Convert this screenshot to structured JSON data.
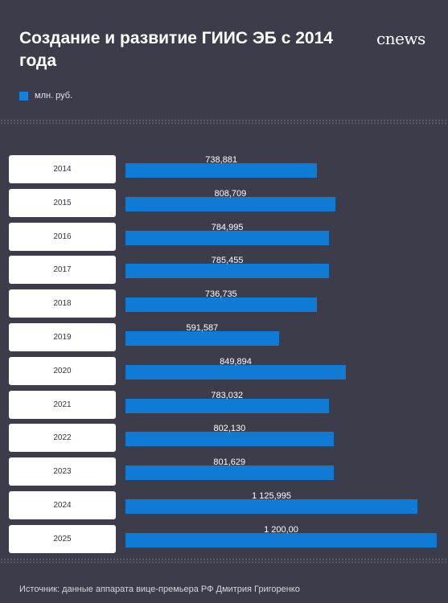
{
  "header": {
    "title": "Создание и развитие ГИИС ЭБ с 2014 года",
    "logo_text": "cnews"
  },
  "footer": {
    "source": "Источник: данные аппарата вице-премьера РФ Дмитрия Григоренко"
  },
  "colors": {
    "background": "#3c3c4b",
    "bar": "#0f7bd4",
    "box": "#ffffff"
  },
  "chart_data": {
    "type": "bar",
    "orientation": "horizontal",
    "title": "Создание и развитие ГИИС ЭБ с 2014 года",
    "legend": [
      "млн. руб."
    ],
    "legend_position": "top-left",
    "categories": [
      "2014",
      "2015",
      "2016",
      "2017",
      "2018",
      "2019",
      "2020",
      "2021",
      "2022",
      "2023",
      "2024",
      "2025"
    ],
    "series": [
      {
        "name": "млн. руб.",
        "values": [
          738.881,
          808.709,
          784.995,
          785.455,
          736.735,
          591.587,
          849.894,
          783.032,
          802.13,
          801.629,
          1125.995,
          1200
        ],
        "labels": [
          "738,881",
          "808,709",
          "784,995",
          "785,455",
          "736,735",
          "591,587",
          "849,894",
          "783,032",
          "802,130",
          "801,629",
          "1 125,995",
          "1 200,00"
        ]
      }
    ],
    "xlim": [
      0,
      1200
    ],
    "grid": false
  }
}
